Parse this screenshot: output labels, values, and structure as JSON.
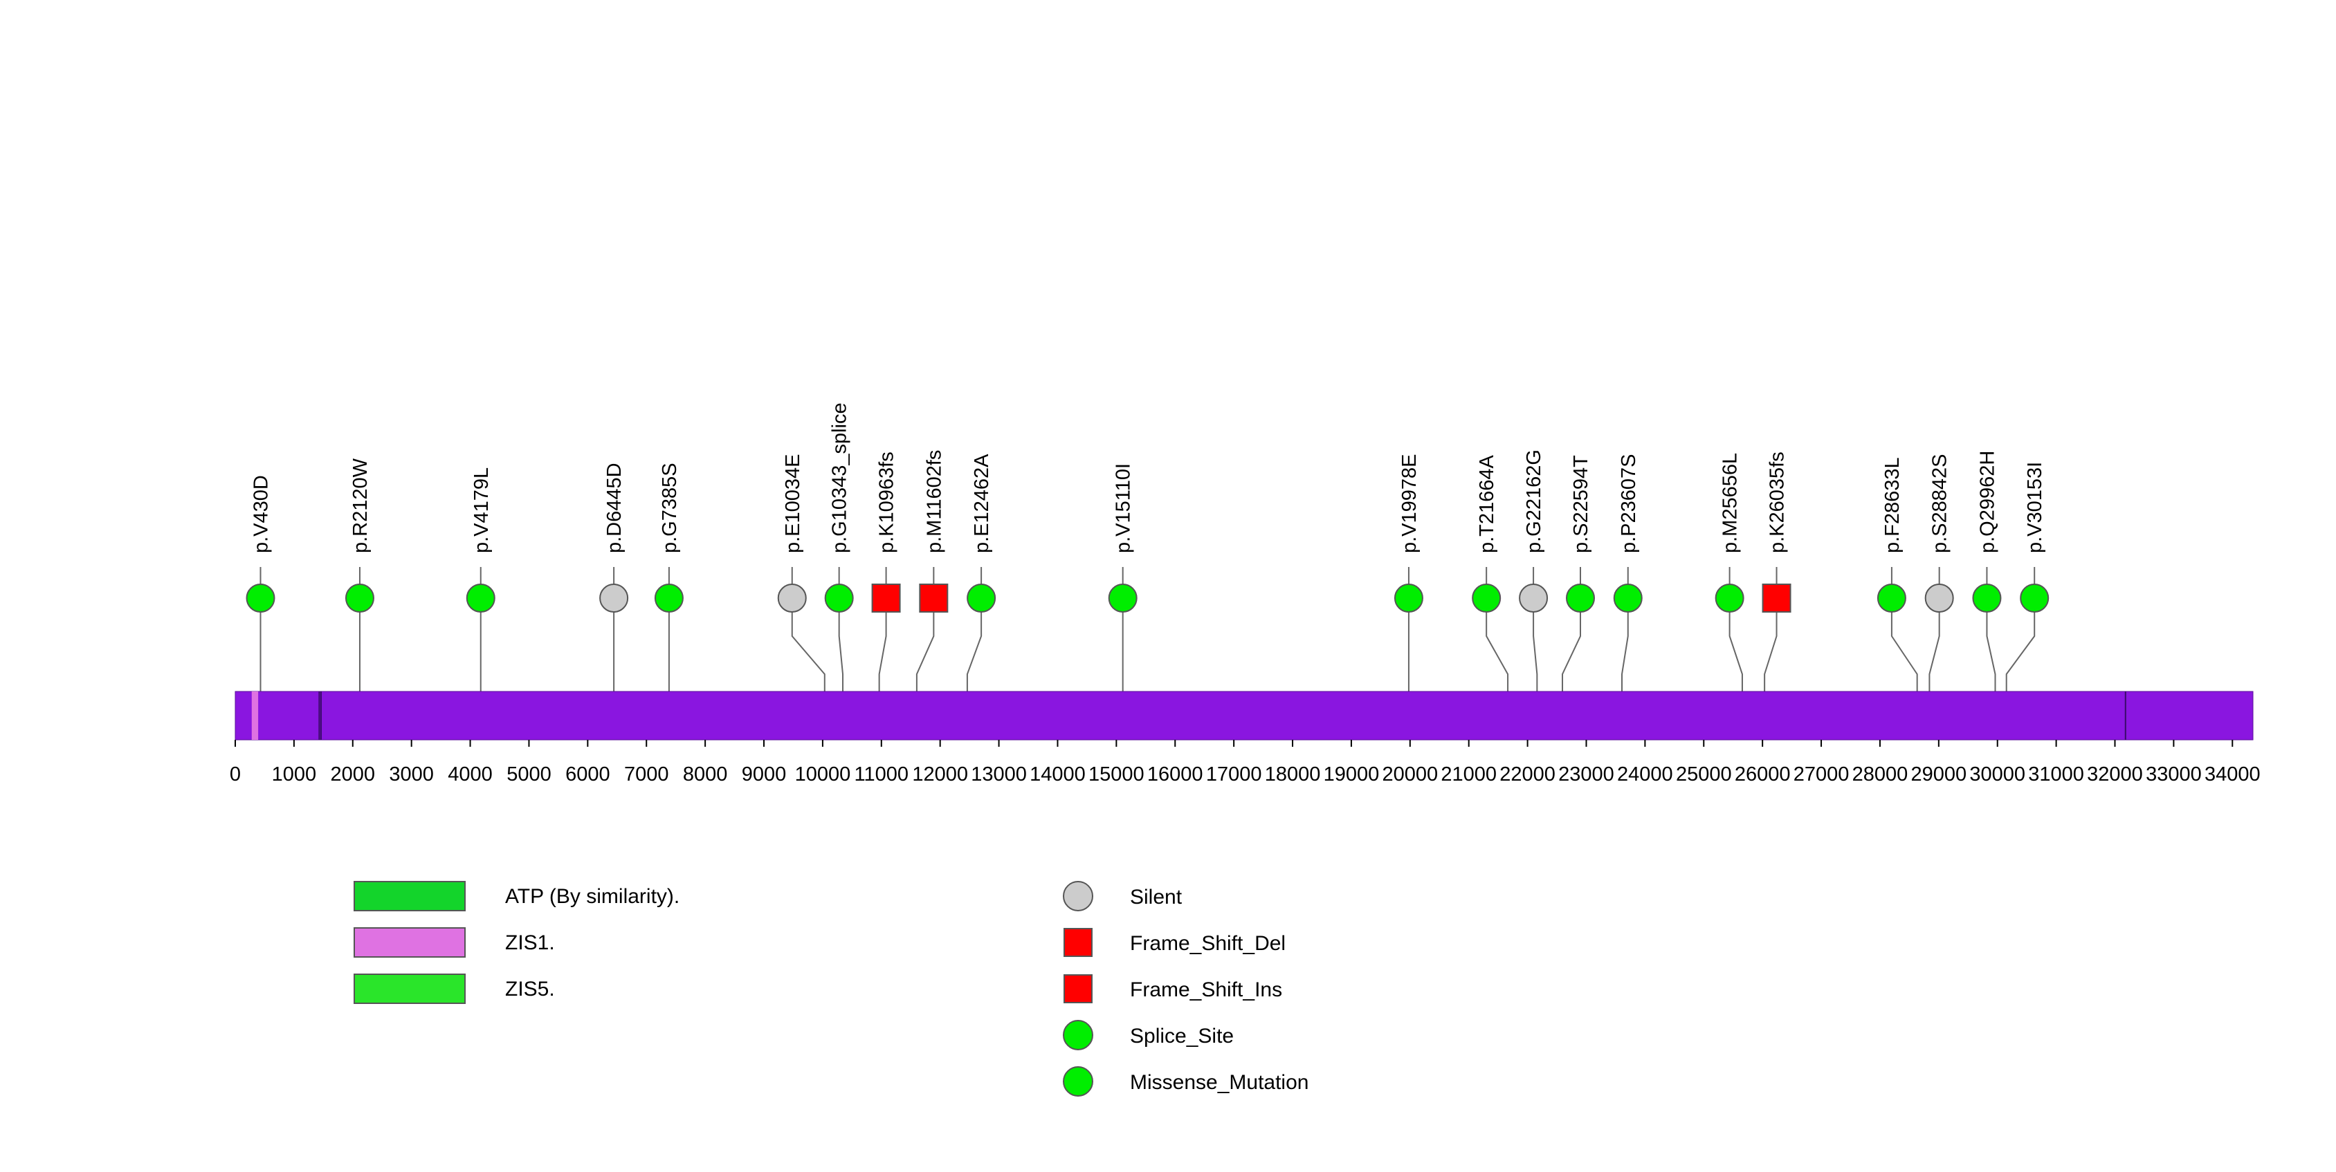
{
  "chart_data": {
    "type": "lollipop",
    "protein_length": 34350,
    "axis": {
      "xlim": [
        0,
        34350
      ],
      "ticks": [
        0,
        1000,
        2000,
        3000,
        4000,
        5000,
        6000,
        7000,
        8000,
        9000,
        10000,
        11000,
        12000,
        13000,
        14000,
        15000,
        16000,
        17000,
        18000,
        19000,
        20000,
        21000,
        22000,
        23000,
        24000,
        25000,
        26000,
        27000,
        28000,
        29000,
        30000,
        31000,
        32000,
        33000,
        34000
      ],
      "tick_labels": [
        "0",
        "1000",
        "2000",
        "3000",
        "4000",
        "5000",
        "6000",
        "7000",
        "8000",
        "9000",
        "10000",
        "11000",
        "12000",
        "13000",
        "14000",
        "15000",
        "16000",
        "17000",
        "18000",
        "19000",
        "20000",
        "21000",
        "22000",
        "23000",
        "24000",
        "25000",
        "26000",
        "27000",
        "28000",
        "29000",
        "30000",
        "31000",
        "32000",
        "33000",
        "34000"
      ]
    },
    "backbone_color": "#8a16e0",
    "domain_regions": [
      {
        "name": "ZIS1.",
        "start": 280,
        "end": 390,
        "color": "#df72e2"
      }
    ],
    "feature_lines": [
      1430,
      1460,
      32180
    ],
    "mutations": [
      {
        "label": "p.V430D",
        "position": 430,
        "type": "Missense_Mutation",
        "display_position": 430
      },
      {
        "label": "p.R2120W",
        "position": 2120,
        "type": "Missense_Mutation",
        "display_position": 2120
      },
      {
        "label": "p.V4179L",
        "position": 4179,
        "type": "Missense_Mutation",
        "display_position": 4179
      },
      {
        "label": "p.D6445D",
        "position": 6445,
        "type": "Silent",
        "display_position": 6445
      },
      {
        "label": "p.G7385S",
        "position": 7385,
        "type": "Missense_Mutation",
        "display_position": 7385
      },
      {
        "label": "p.E10034E",
        "position": 10034,
        "type": "Silent",
        "display_position": 9480
      },
      {
        "label": "p.G10343_splice",
        "position": 10343,
        "type": "Splice_Site",
        "display_position": 10280
      },
      {
        "label": "p.K10963fs",
        "position": 10963,
        "type": "Frame_Shift_Del",
        "display_position": 11080
      },
      {
        "label": "p.M11602fs",
        "position": 11602,
        "type": "Frame_Shift_Ins",
        "display_position": 11890
      },
      {
        "label": "p.E12462A",
        "position": 12462,
        "type": "Missense_Mutation",
        "display_position": 12700
      },
      {
        "label": "p.V15110I",
        "position": 15110,
        "type": "Missense_Mutation",
        "display_position": 15110
      },
      {
        "label": "p.V19978E",
        "position": 19978,
        "type": "Missense_Mutation",
        "display_position": 19978
      },
      {
        "label": "p.T21664A",
        "position": 21664,
        "type": "Missense_Mutation",
        "display_position": 21300
      },
      {
        "label": "p.G22162G",
        "position": 22162,
        "type": "Silent",
        "display_position": 22100
      },
      {
        "label": "p.S22594T",
        "position": 22594,
        "type": "Missense_Mutation",
        "display_position": 22900
      },
      {
        "label": "p.P23607S",
        "position": 23607,
        "type": "Missense_Mutation",
        "display_position": 23710
      },
      {
        "label": "p.M25656L",
        "position": 25656,
        "type": "Missense_Mutation",
        "display_position": 25440
      },
      {
        "label": "p.K26035fs",
        "position": 26035,
        "type": "Frame_Shift_Del",
        "display_position": 26240
      },
      {
        "label": "p.F28633L",
        "position": 28633,
        "type": "Missense_Mutation",
        "display_position": 28200
      },
      {
        "label": "p.S28842S",
        "position": 28842,
        "type": "Silent",
        "display_position": 29010
      },
      {
        "label": "p.Q29962H",
        "position": 29962,
        "type": "Missense_Mutation",
        "display_position": 29820
      },
      {
        "label": "p.V30153I",
        "position": 30153,
        "type": "Missense_Mutation",
        "display_position": 30630
      }
    ],
    "domain_legend": [
      {
        "label": "ATP (By similarity).",
        "color": "#13d42b"
      },
      {
        "label": "ZIS1.",
        "color": "#df72e2"
      },
      {
        "label": "ZIS5.",
        "color": "#2ae52a"
      }
    ],
    "mutation_legend": [
      {
        "label": "Silent",
        "shape": "circle",
        "color": "#cccccc"
      },
      {
        "label": "Frame_Shift_Del",
        "shape": "square",
        "color": "#ff0000"
      },
      {
        "label": "Frame_Shift_Ins",
        "shape": "square",
        "color": "#ff0000"
      },
      {
        "label": "Splice_Site",
        "shape": "circle",
        "color": "#00ee00"
      },
      {
        "label": "Missense_Mutation",
        "shape": "circle",
        "color": "#00ee00"
      }
    ],
    "type_colors": {
      "Silent": "#cccccc",
      "Frame_Shift_Del": "#ff0000",
      "Frame_Shift_Ins": "#ff0000",
      "Splice_Site": "#00ee00",
      "Missense_Mutation": "#00ee00"
    },
    "type_shapes": {
      "Silent": "circle",
      "Frame_Shift_Del": "square",
      "Frame_Shift_Ins": "square",
      "Splice_Site": "circle",
      "Missense_Mutation": "circle"
    }
  }
}
